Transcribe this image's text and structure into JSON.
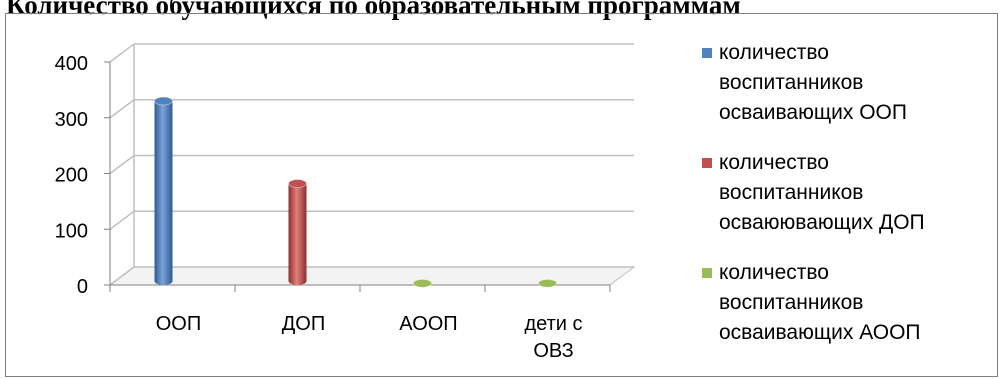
{
  "title": "Количество обучающихся по образовательным программам",
  "chart_data": {
    "type": "bar",
    "title": "Количество обучающихся по образовательным программам",
    "categories": [
      "ООП",
      "ДОП",
      "АООП",
      "дети с ОВЗ"
    ],
    "category_lines": [
      [
        "ООП"
      ],
      [
        "ДОП"
      ],
      [
        "АООП"
      ],
      [
        "дети с",
        "ОВЗ"
      ]
    ],
    "series": [
      {
        "name": "количество воспитанников осваивающих ООП",
        "color": "#4f81bd",
        "values": [
          330,
          0,
          0,
          0
        ]
      },
      {
        "name": "количество воспитанников осваюювающих ДОП",
        "color": "#c0504d",
        "values": [
          0,
          182,
          0,
          0
        ]
      },
      {
        "name": "количество воспитанников осваивающих АООП",
        "color": "#9bbb59",
        "values": [
          0,
          0,
          3,
          3
        ]
      }
    ],
    "ylim": [
      0,
      400
    ],
    "yticks": [
      0,
      100,
      200,
      300,
      400
    ],
    "grid": true,
    "legend": "right"
  },
  "legend": {
    "items": [
      {
        "color": "#4f81bd",
        "lines": [
          "количество",
          "воспитанников",
          "осваивающих ООП"
        ]
      },
      {
        "color": "#c0504d",
        "lines": [
          "количество",
          "воспитанников",
          "осваюювающих ДОП"
        ]
      },
      {
        "color": "#9bbb59",
        "lines": [
          "количество",
          "воспитанников",
          "осваивающих АООП"
        ]
      }
    ]
  }
}
